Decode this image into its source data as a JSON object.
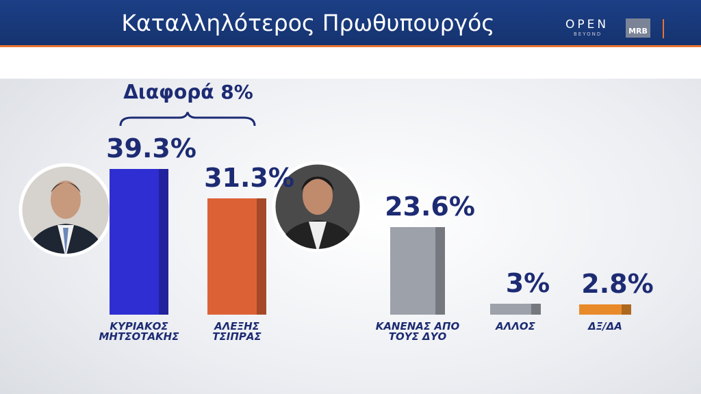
{
  "header": {
    "brand_top": "OPEN",
    "brand_bottom": "BEYOND",
    "pollster": "MRB"
  },
  "chart_data": {
    "type": "bar",
    "title": "Καταλληλότερος Πρωθυπουργός",
    "annotation": "Διαφορά 8%",
    "categories": [
      "ΚΥΡΙΑΚΟΣ\nΜΗΤΣΟΤΑΚΗΣ",
      "ΑΛΕΞΗΣ\nΤΣΙΠΡΑΣ",
      "ΚΑΝΕΝΑΣ ΑΠΟ\nΤΟΥΣ ΔΥΟ",
      "ΑΛΛΟΣ",
      "ΔΞ/ΔΑ"
    ],
    "values": [
      39.3,
      31.3,
      23.6,
      3,
      2.8
    ],
    "value_labels": [
      "39.3%",
      "31.3%",
      "23.6%",
      "3%",
      "2.8%"
    ],
    "colors": [
      "#2e2ed2",
      "#dc6236",
      "#9da1aa",
      "#9da1aa",
      "#e98a2a"
    ]
  }
}
